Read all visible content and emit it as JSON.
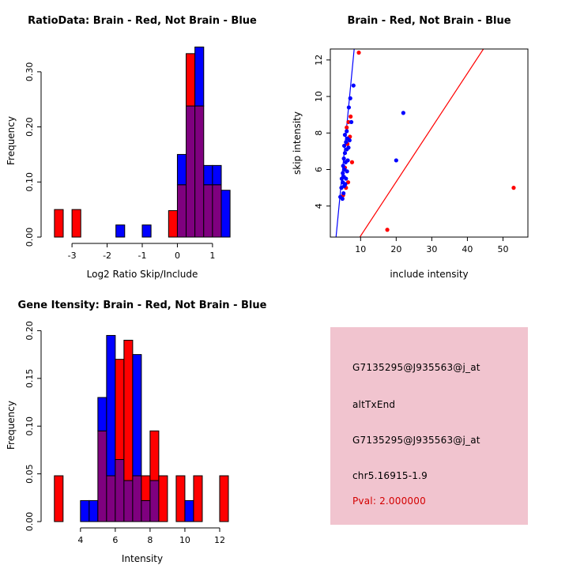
{
  "figure": {
    "background": "#ffffff",
    "colors": {
      "red": "#ff0000",
      "blue": "#0000ff",
      "overlap": "#7f007f",
      "axis": "#000000"
    }
  },
  "chart_data": [
    {
      "id": "ratio_hist",
      "type": "bar",
      "subtype": "overlaid_histogram",
      "title": "RatioData: Brain - Red, Not Brain - Blue",
      "xlabel": "Log2 Ratio Skip/Include",
      "ylabel": "Frequency",
      "legend": "Brain = red, Not Brain = blue, overlap = purple",
      "xlim": [
        -3.7,
        1.7
      ],
      "ylim": [
        0,
        0.35
      ],
      "xticks": [
        -3,
        -2,
        -1,
        0,
        1
      ],
      "yticks": [
        0,
        0.1,
        0.2,
        0.3
      ],
      "ytick_labels": [
        "0.00",
        "0.10",
        "0.20",
        "0.30"
      ],
      "bin_width": 0.25,
      "series": [
        {
          "name": "Brain (red)",
          "color": "#ff0000",
          "bars": [
            [
              -3.5,
              0.05
            ],
            [
              -3.0,
              0.05
            ],
            [
              -0.25,
              0.048
            ],
            [
              0.0,
              0.095
            ],
            [
              0.25,
              0.333
            ],
            [
              0.5,
              0.238
            ],
            [
              0.75,
              0.095
            ],
            [
              1.0,
              0.095
            ]
          ]
        },
        {
          "name": "Not Brain (blue)",
          "color": "#0000ff",
          "bars": [
            [
              -1.75,
              0.022
            ],
            [
              -1.0,
              0.022
            ],
            [
              0.0,
              0.15
            ],
            [
              0.25,
              0.238
            ],
            [
              0.5,
              0.345
            ],
            [
              0.75,
              0.13
            ],
            [
              1.0,
              0.13
            ],
            [
              1.25,
              0.085
            ]
          ]
        }
      ]
    },
    {
      "id": "intensity_scatter",
      "type": "scatter",
      "title": "Brain - Red, Not Brain - Blue",
      "xlabel": "include intensity",
      "ylabel": "skip intensity",
      "xlim": [
        1.5,
        57
      ],
      "ylim": [
        2.3,
        12.6
      ],
      "xticks": [
        10,
        20,
        30,
        40,
        50
      ],
      "yticks": [
        4,
        6,
        8,
        10,
        12
      ],
      "series": [
        {
          "name": "Brain (red)",
          "color": "#ff0000",
          "points": [
            [
              5.1,
              4.6
            ],
            [
              5.9,
              5.0
            ],
            [
              6.5,
              5.3
            ],
            [
              5.6,
              6.1
            ],
            [
              7.6,
              6.4
            ],
            [
              6.3,
              7.4
            ],
            [
              7.0,
              7.8
            ],
            [
              6.1,
              8.3
            ],
            [
              6.6,
              8.6
            ],
            [
              7.2,
              8.9
            ],
            [
              9.5,
              12.4
            ],
            [
              17.5,
              2.7
            ],
            [
              53.0,
              5.0
            ]
          ]
        },
        {
          "name": "Not Brain (blue)",
          "color": "#0000ff",
          "points": [
            [
              4.3,
              4.5
            ],
            [
              4.9,
              4.4
            ],
            [
              5.2,
              4.7
            ],
            [
              4.6,
              5.0
            ],
            [
              5.4,
              5.1
            ],
            [
              5.0,
              5.3
            ],
            [
              5.7,
              5.2
            ],
            [
              4.7,
              5.5
            ],
            [
              5.3,
              5.6
            ],
            [
              5.9,
              5.5
            ],
            [
              5.0,
              5.8
            ],
            [
              5.5,
              6.0
            ],
            [
              6.2,
              5.9
            ],
            [
              5.1,
              6.2
            ],
            [
              5.8,
              6.4
            ],
            [
              5.3,
              6.6
            ],
            [
              6.4,
              6.5
            ],
            [
              5.6,
              6.9
            ],
            [
              6.1,
              7.1
            ],
            [
              5.4,
              7.3
            ],
            [
              6.6,
              7.2
            ],
            [
              5.9,
              7.5
            ],
            [
              6.3,
              7.7
            ],
            [
              5.6,
              7.9
            ],
            [
              6.9,
              7.6
            ],
            [
              6.1,
              8.1
            ],
            [
              7.4,
              8.6
            ],
            [
              6.7,
              9.4
            ],
            [
              7.1,
              9.9
            ],
            [
              8.0,
              10.6
            ],
            [
              20.0,
              6.5
            ],
            [
              22.0,
              9.1
            ]
          ]
        }
      ],
      "lines": [
        {
          "name": "not_brain_fit",
          "color": "#0000ff",
          "from": [
            3.1,
            2.3
          ],
          "to": [
            8.2,
            12.6
          ]
        },
        {
          "name": "brain_fit",
          "color": "#ff0000",
          "from": [
            9.8,
            2.3
          ],
          "to": [
            44.5,
            12.6
          ]
        }
      ]
    },
    {
      "id": "gene_hist",
      "type": "bar",
      "subtype": "overlaid_histogram",
      "title": "Gene Itensity: Brain - Red, Not Brain - Blue",
      "xlabel": "Intensity",
      "ylabel": "Frequency",
      "xlim": [
        2.1,
        13.0
      ],
      "ylim": [
        0,
        0.202
      ],
      "xticks": [
        4,
        6,
        8,
        10,
        12
      ],
      "yticks": [
        0,
        0.05,
        0.1,
        0.15,
        0.2
      ],
      "ytick_labels": [
        "0.00",
        "0.05",
        "0.10",
        "0.15",
        "0.20"
      ],
      "bin_width": 0.5,
      "series": [
        {
          "name": "Brain (red)",
          "color": "#ff0000",
          "bars": [
            [
              2.5,
              0.048
            ],
            [
              5.0,
              0.095
            ],
            [
              5.5,
              0.048
            ],
            [
              6.0,
              0.17
            ],
            [
              6.5,
              0.19
            ],
            [
              7.0,
              0.048
            ],
            [
              7.5,
              0.048
            ],
            [
              8.0,
              0.095
            ],
            [
              8.5,
              0.048
            ],
            [
              9.5,
              0.048
            ],
            [
              10.5,
              0.048
            ],
            [
              12.0,
              0.048
            ]
          ]
        },
        {
          "name": "Not Brain (blue)",
          "color": "#0000ff",
          "bars": [
            [
              4.0,
              0.022
            ],
            [
              4.5,
              0.022
            ],
            [
              5.0,
              0.13
            ],
            [
              5.5,
              0.195
            ],
            [
              6.0,
              0.065
            ],
            [
              6.5,
              0.043
            ],
            [
              7.0,
              0.175
            ],
            [
              7.5,
              0.022
            ],
            [
              8.0,
              0.043
            ],
            [
              10.0,
              0.022
            ]
          ]
        }
      ]
    }
  ],
  "info_panel": {
    "background": "#f1c4cf",
    "lines": [
      {
        "text": "G7135295@J935563@j_at",
        "color": "#000000"
      },
      {
        "text": "altTxEnd",
        "color": "#000000"
      },
      {
        "text": "G7135295@J935563@j_at",
        "color": "#000000"
      },
      {
        "text": "chr5.16915-1.9",
        "color": "#000000"
      },
      {
        "text": "Pval: 2.000000",
        "color": "#d40000"
      }
    ]
  }
}
